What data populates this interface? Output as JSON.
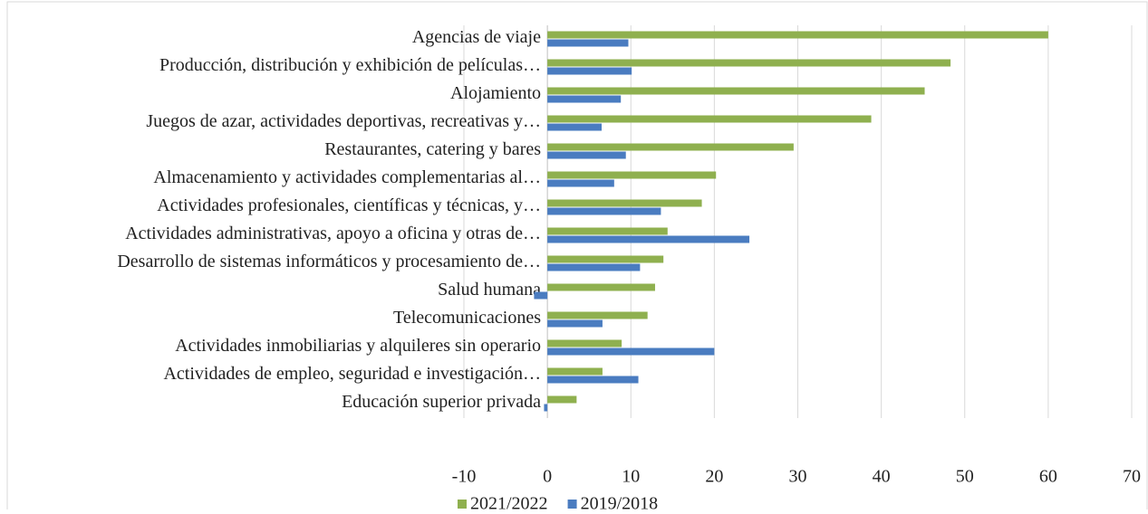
{
  "chart_data": {
    "type": "bar",
    "orientation": "horizontal",
    "categories": [
      "Agencias de viaje",
      "Producción, distribución y exhibición de películas…",
      "Alojamiento",
      "Juegos de azar, actividades deportivas, recreativas y…",
      "Restaurantes, catering y bares",
      "Almacenamiento y actividades complementarias al…",
      "Actividades profesionales, científicas y técnicas, y…",
      "Actividades administrativas, apoyo a oficina y otras de…",
      "Desarrollo de sistemas informáticos y procesamiento de…",
      "Salud humana",
      "Telecomunicaciones",
      "Actividades inmobiliarias y alquileres sin operario",
      "Actividades de empleo, seguridad e investigación…",
      "Educación superior privada"
    ],
    "series": [
      {
        "name": "2021/2022",
        "color": "#8fb04f",
        "values": [
          60,
          48.3,
          45.2,
          38.8,
          29.5,
          20.2,
          18.5,
          14.4,
          13.9,
          12.9,
          12.0,
          8.9,
          6.6,
          3.5
        ]
      },
      {
        "name": "2019/2018",
        "color": "#4a7cc0",
        "values": [
          9.7,
          10.1,
          8.8,
          6.5,
          9.4,
          8.0,
          13.6,
          24.2,
          11.1,
          -1.6,
          6.6,
          20.0,
          10.9,
          -0.4
        ]
      }
    ],
    "xlim": [
      -10,
      70
    ],
    "xticks": [
      -10,
      0,
      10,
      20,
      30,
      40,
      50,
      60,
      70
    ],
    "grid": true,
    "legend": "bottom"
  }
}
